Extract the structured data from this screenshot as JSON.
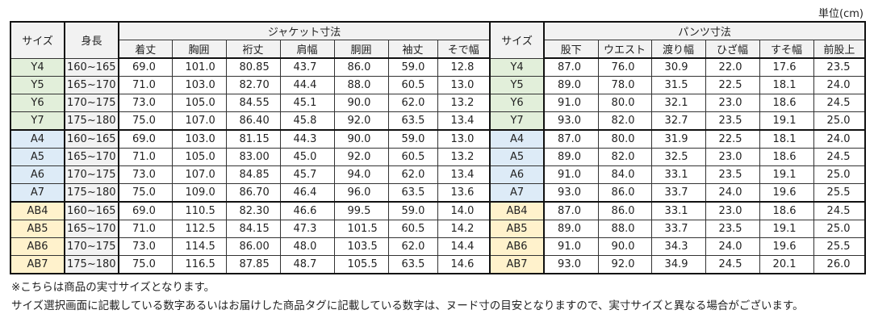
{
  "unit_label": "単位(cm)",
  "headers": {
    "size": "サイズ",
    "height": "身長",
    "jacket_group": "ジャケット寸法",
    "jacket_cols": [
      "着丈",
      "胸囲",
      "裄丈",
      "肩幅",
      "胴囲",
      "袖丈",
      "そで幅"
    ],
    "pants_size": "サイズ",
    "pants_group": "パンツ寸法",
    "pants_cols": [
      "股下",
      "ウエスト",
      "渡り幅",
      "ひざ幅",
      "すそ幅",
      "前股上"
    ]
  },
  "group_colors": {
    "Y": "#e2efda",
    "A": "#ddebf7",
    "AB": "#fff2cc"
  },
  "rows": [
    {
      "group": "Y",
      "size": "Y4",
      "height": "160~165",
      "jacket": [
        "69.0",
        "101.0",
        "80.85",
        "43.7",
        "86.0",
        "59.0",
        "12.8"
      ],
      "pants": [
        "87.0",
        "76.0",
        "30.9",
        "22.0",
        "17.6",
        "23.5"
      ]
    },
    {
      "group": "Y",
      "size": "Y5",
      "height": "165~170",
      "jacket": [
        "71.0",
        "103.0",
        "82.70",
        "44.4",
        "88.0",
        "60.5",
        "13.0"
      ],
      "pants": [
        "89.0",
        "78.0",
        "31.5",
        "22.5",
        "18.1",
        "24.0"
      ]
    },
    {
      "group": "Y",
      "size": "Y6",
      "height": "170~175",
      "jacket": [
        "73.0",
        "105.0",
        "84.55",
        "45.1",
        "90.0",
        "62.0",
        "13.2"
      ],
      "pants": [
        "91.0",
        "80.0",
        "32.1",
        "23.0",
        "18.6",
        "24.5"
      ]
    },
    {
      "group": "Y",
      "size": "Y7",
      "height": "175~180",
      "jacket": [
        "75.0",
        "107.0",
        "86.40",
        "45.8",
        "92.0",
        "63.5",
        "13.4"
      ],
      "pants": [
        "93.0",
        "82.0",
        "32.7",
        "23.5",
        "19.1",
        "25.0"
      ]
    },
    {
      "group": "A",
      "size": "A4",
      "height": "160~165",
      "jacket": [
        "69.0",
        "103.0",
        "81.15",
        "44.3",
        "90.0",
        "59.0",
        "13.0"
      ],
      "pants": [
        "87.0",
        "80.0",
        "31.9",
        "22.5",
        "18.1",
        "24.0"
      ]
    },
    {
      "group": "A",
      "size": "A5",
      "height": "165~170",
      "jacket": [
        "71.0",
        "105.0",
        "83.00",
        "45.0",
        "92.0",
        "60.5",
        "13.2"
      ],
      "pants": [
        "89.0",
        "82.0",
        "32.5",
        "23.0",
        "18.6",
        "24.5"
      ]
    },
    {
      "group": "A",
      "size": "A6",
      "height": "170~175",
      "jacket": [
        "73.0",
        "107.0",
        "84.85",
        "45.7",
        "94.0",
        "62.0",
        "13.4"
      ],
      "pants": [
        "91.0",
        "84.0",
        "33.1",
        "23.5",
        "19.1",
        "25.0"
      ]
    },
    {
      "group": "A",
      "size": "A7",
      "height": "175~180",
      "jacket": [
        "75.0",
        "109.0",
        "86.70",
        "46.4",
        "96.0",
        "63.5",
        "13.6"
      ],
      "pants": [
        "93.0",
        "86.0",
        "33.7",
        "24.0",
        "19.6",
        "25.5"
      ]
    },
    {
      "group": "AB",
      "size": "AB4",
      "height": "160~165",
      "jacket": [
        "69.0",
        "110.5",
        "82.30",
        "46.6",
        "99.5",
        "59.0",
        "14.0"
      ],
      "pants": [
        "87.0",
        "86.0",
        "33.1",
        "23.0",
        "18.6",
        "24.5"
      ]
    },
    {
      "group": "AB",
      "size": "AB5",
      "height": "165~170",
      "jacket": [
        "71.0",
        "112.5",
        "84.15",
        "47.3",
        "101.5",
        "60.5",
        "14.2"
      ],
      "pants": [
        "89.0",
        "88.0",
        "33.7",
        "23.5",
        "19.1",
        "25.0"
      ]
    },
    {
      "group": "AB",
      "size": "AB6",
      "height": "170~175",
      "jacket": [
        "73.0",
        "114.5",
        "86.00",
        "48.0",
        "103.5",
        "62.0",
        "14.4"
      ],
      "pants": [
        "91.0",
        "90.0",
        "34.3",
        "24.0",
        "19.6",
        "25.5"
      ]
    },
    {
      "group": "AB",
      "size": "AB7",
      "height": "175~180",
      "jacket": [
        "75.0",
        "116.5",
        "87.85",
        "48.7",
        "105.5",
        "63.5",
        "14.6"
      ],
      "pants": [
        "93.0",
        "92.0",
        "34.9",
        "24.5",
        "20.1",
        "26.0"
      ]
    }
  ],
  "notes": [
    "※こちらは商品の実寸サイズとなります。",
    "サイズ選択画面に記載している数字あるいはお届けした商品タグに記載している数字は、ヌード寸の目安となりますので、実寸サイズと異なる場合がございます。"
  ]
}
